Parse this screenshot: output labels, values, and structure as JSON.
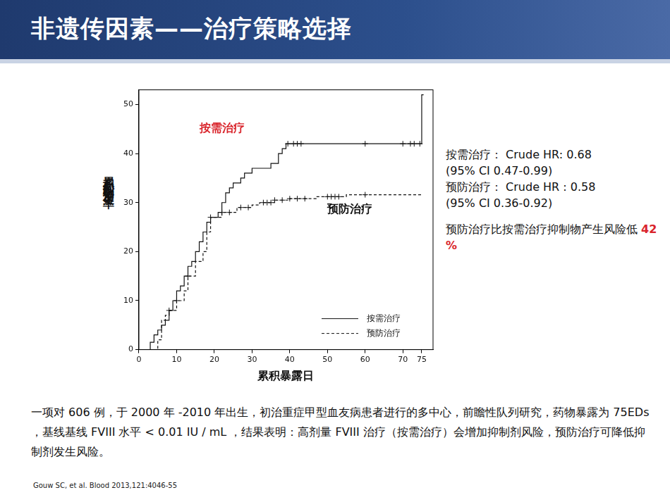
{
  "slide_title": "非遗传因素——治疗策略选择",
  "chart_data": {
    "type": "line",
    "x_label": "累积暴露日",
    "y_label": "累积抑制物发生率",
    "xlim": [
      0,
      78
    ],
    "xticks": [
      0,
      10,
      20,
      30,
      40,
      50,
      60,
      70,
      75
    ],
    "ylim": [
      0,
      53
    ],
    "yticks": [
      0,
      10,
      20,
      30,
      40,
      50
    ],
    "grid": false,
    "legend": "bottom right",
    "annotations": [
      {
        "text": "按需治疗",
        "color": "#d9242b"
      },
      {
        "text": "预防治疗",
        "color": "#111111"
      }
    ],
    "series": [
      {
        "name": "按需治疗",
        "color": "#111111",
        "line_style": "solid",
        "marker": "cross",
        "x": [
          0,
          3,
          4,
          5,
          6,
          7,
          8,
          9,
          10,
          11,
          12,
          13,
          14,
          15,
          16,
          17,
          18,
          19,
          21,
          22,
          23,
          24,
          25,
          27,
          28,
          30,
          35,
          37,
          38,
          39,
          75,
          75.5
        ],
        "values": [
          0,
          1.5,
          3,
          4,
          5,
          6,
          8,
          10,
          12,
          13,
          15,
          17,
          18,
          20,
          22,
          24,
          26,
          27,
          28,
          30,
          32,
          33,
          34,
          35,
          36,
          37,
          38,
          40,
          41,
          42,
          52,
          52
        ],
        "censored": [
          39.5,
          41,
          42,
          43,
          60,
          70,
          72,
          73,
          74.5
        ]
      },
      {
        "name": "预防治疗",
        "color": "#111111",
        "line_style": "dashed",
        "marker": "cross",
        "x": [
          0,
          5,
          6,
          7,
          8,
          10,
          12,
          13,
          15,
          17,
          18,
          19,
          22,
          26,
          30,
          32,
          36,
          40,
          47,
          55,
          75
        ],
        "values": [
          0,
          2,
          6,
          7,
          8,
          10,
          12,
          15,
          18,
          20,
          24,
          27,
          28,
          29,
          29.5,
          30,
          30.5,
          30.8,
          31.2,
          31.6,
          31.8
        ],
        "censored": [
          8,
          10,
          13,
          19,
          22,
          24,
          27,
          29,
          33,
          34,
          35,
          36,
          38,
          40,
          42,
          44,
          50,
          51,
          52,
          53,
          60
        ]
      }
    ]
  },
  "notes": [
    "按需治疗： Crude HR: 0.68",
    "(95% CI 0.47-0.99)",
    "预防治疗：  Crude HR : 0.58",
    "(95% CI 0.36-0.92)"
  ],
  "conclusion": {
    "text": "预防治疗比按需治疗抑制物产生风险低 ",
    "highlight": "42 %"
  },
  "caption": "一项对 606 例，于 2000 年 -2010 年出生，初治重症甲型血友病患者进行的多中心，前瞻性队列研究，药物暴露为 75EDs ，基线基线 FVIII 水平 <   0.01 IU / mL ，结果表明：高剂量 FVIII 治疗（按需治疗）会增加抑制剂风险，预防治疗可降低抑制剂发生风险。",
  "citation": "Gouw SC, et al. Blood 2013,121:4046-55"
}
